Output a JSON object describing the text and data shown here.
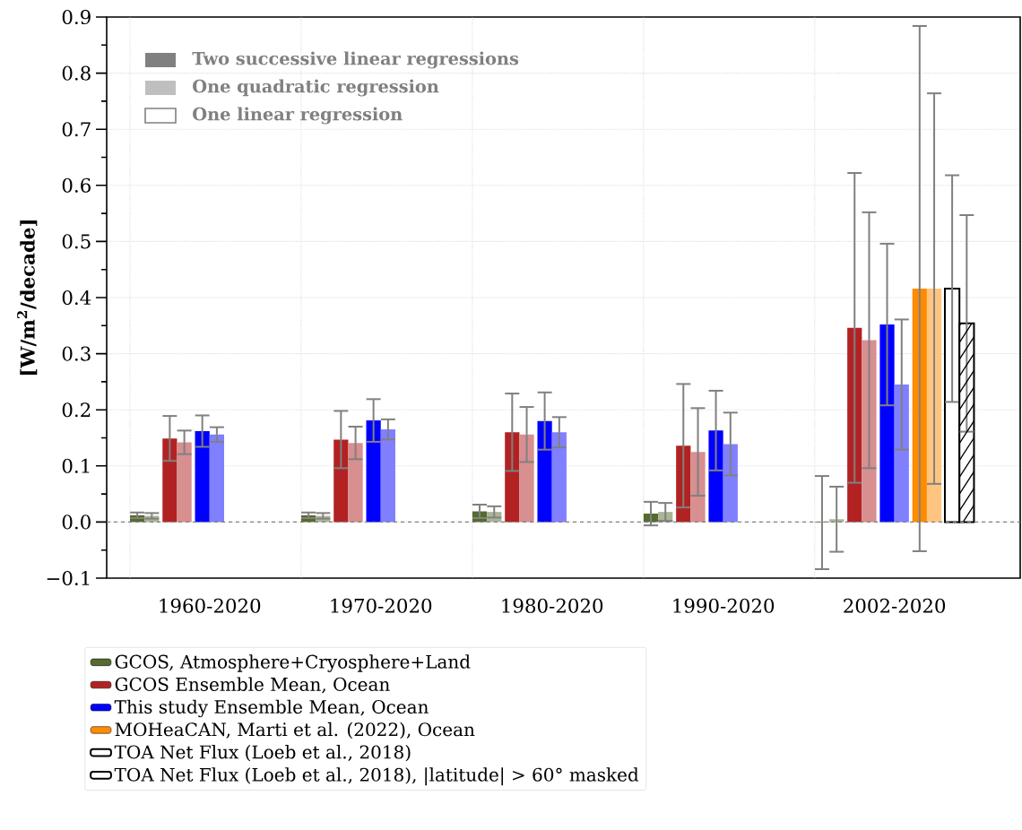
{
  "chart_data": {
    "type": "bar",
    "ylabel": "[W/m$^{2}$/decade]",
    "categories": [
      "1960-2020",
      "1970-2020",
      "1980-2020",
      "1990-2020",
      "2002-2020"
    ],
    "ylim": [
      -0.1,
      0.9
    ],
    "yticks": [
      {
        "value": -0.1,
        "label": "−0.1"
      },
      {
        "value": 0,
        "label": "0.0"
      },
      0.1,
      0.2,
      0.3,
      0.4,
      0.5,
      0.6,
      0.7,
      0.8,
      0.9
    ],
    "grid": true,
    "legend": "bottom",
    "ref_lines": [
      {
        "axis": "y",
        "value": 0,
        "color": "#808080",
        "line_style": "dashed"
      }
    ],
    "annotations": [
      "Two successive linear regressions",
      "One quadratic regression",
      "One linear regression"
    ],
    "series": [
      {
        "name": "GCOS, Atmosphere+Cryosphere+Land",
        "color": "#556b2f",
        "values": [
          0.012,
          0.012,
          0.019,
          0.015,
          -0.001
        ],
        "errors": [
          0.005,
          0.005,
          0.012,
          0.021,
          0.083
        ]
      },
      {
        "color": "#aab597",
        "values": [
          0.011,
          0.011,
          0.018,
          0.018,
          0.005
        ],
        "errors": [
          0.005,
          0.005,
          0.01,
          0.016,
          0.058
        ]
      },
      {
        "name": "GCOS Ensemble Mean, Ocean",
        "color": "#b22222",
        "values": [
          0.149,
          0.147,
          0.16,
          0.136,
          0.346
        ],
        "errors": [
          0.04,
          0.051,
          0.069,
          0.11,
          0.276
        ]
      },
      {
        "color": "#d88f8f",
        "values": [
          0.142,
          0.141,
          0.156,
          0.125,
          0.324
        ],
        "errors": [
          0.021,
          0.029,
          0.049,
          0.078,
          0.228
        ]
      },
      {
        "name": "This study Ensemble Mean, Ocean",
        "color": "#0000ff",
        "values": [
          0.162,
          0.181,
          0.18,
          0.163,
          0.352
        ],
        "errors": [
          0.028,
          0.038,
          0.051,
          0.071,
          0.144
        ]
      },
      {
        "color": "#8080ff",
        "values": [
          0.156,
          0.165,
          0.16,
          0.139,
          0.245
        ],
        "errors": [
          0.013,
          0.018,
          0.027,
          0.056,
          0.116
        ]
      },
      {
        "name": "MOHeaCAN, Marti et al. (2022), Ocean",
        "color": "#ff8c00",
        "values": [
          null,
          null,
          null,
          null,
          0.416
        ],
        "errors": [
          null,
          null,
          null,
          null,
          0.468
        ]
      },
      {
        "color": "#ffc580",
        "values": [
          null,
          null,
          null,
          null,
          0.416
        ],
        "errors": [
          null,
          null,
          null,
          null,
          0.348
        ]
      },
      {
        "name": "TOA Net Flux (Loeb et al., 2018)",
        "color": "#ffffff",
        "values": [
          null,
          null,
          null,
          null,
          0.416
        ],
        "errors": [
          null,
          null,
          null,
          null,
          0.202
        ]
      },
      {
        "name": "TOA Net Flux (Loeb et al., 2018), |latitude| > 60° masked",
        "color": "#ffffff",
        "values": [
          null,
          null,
          null,
          null,
          0.354
        ],
        "errors": [
          null,
          null,
          null,
          null,
          0.193
        ]
      }
    ]
  }
}
